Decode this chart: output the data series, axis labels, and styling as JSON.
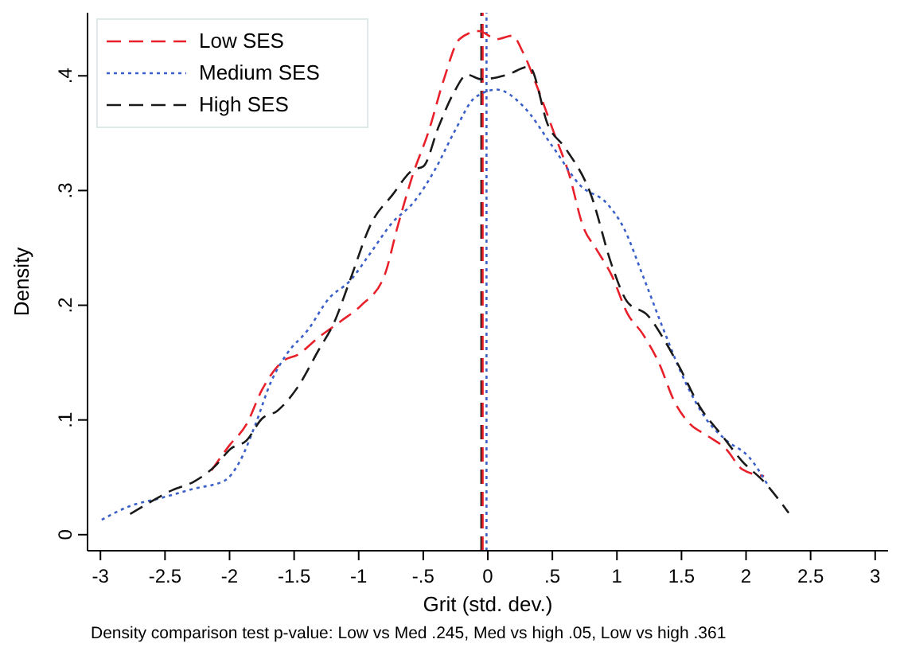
{
  "chart_data": {
    "type": "line",
    "xlabel": "Grit (std. dev.)",
    "ylabel": "Density",
    "annotations": [
      "Density comparison test p-value: Low vs Med .245, Med vs high .05, Low vs high .361"
    ],
    "xlim": [
      -3.1,
      3.1
    ],
    "ylim": [
      -0.014,
      0.455
    ],
    "xticks": [
      -3,
      -2.5,
      -2,
      -1.5,
      -1,
      {
        "value": -0.5,
        "label": "-.5"
      },
      0,
      {
        "value": 0.5,
        "label": ".5"
      },
      1,
      1.5,
      2,
      2.5,
      3
    ],
    "yticks": [
      0,
      {
        "value": 0.1,
        "label": ".1"
      },
      {
        "value": 0.2,
        "label": ".2"
      },
      {
        "value": 0.3,
        "label": ".3"
      },
      {
        "value": 0.4,
        "label": ".4"
      }
    ],
    "grid": false,
    "legend": "top left",
    "marker": "none",
    "series": [
      {
        "name": "Low SES",
        "color": "#e8202a",
        "line_style": "dashed",
        "x": [
          -2.14,
          -2.0,
          -1.87,
          -1.75,
          -1.59,
          -1.47,
          -1.31,
          -1.14,
          -0.98,
          -0.8,
          -0.7,
          -0.58,
          -0.46,
          -0.34,
          -0.22,
          -0.07,
          0.07,
          0.19,
          0.27,
          0.39,
          0.51,
          0.63,
          0.74,
          0.84,
          0.96,
          1.08,
          1.2,
          1.32,
          1.45,
          1.57,
          1.69,
          1.85,
          1.97,
          2.14
        ],
        "values": [
          0.056,
          0.078,
          0.096,
          0.126,
          0.151,
          0.157,
          0.172,
          0.186,
          0.2,
          0.226,
          0.268,
          0.314,
          0.351,
          0.397,
          0.432,
          0.439,
          0.432,
          0.435,
          0.421,
          0.388,
          0.351,
          0.314,
          0.268,
          0.249,
          0.226,
          0.193,
          0.175,
          0.151,
          0.115,
          0.096,
          0.087,
          0.074,
          0.057,
          0.051
        ]
      },
      {
        "name": "Medium SES",
        "color": "#3a5fc8",
        "line_style": "dotted",
        "x": [
          -2.99,
          -2.77,
          -2.53,
          -2.28,
          -2.04,
          -1.92,
          -1.8,
          -1.68,
          -1.56,
          -1.39,
          -1.23,
          -1.07,
          -0.9,
          -0.74,
          -0.58,
          -0.41,
          -0.26,
          -0.1,
          0.07,
          0.27,
          0.51,
          0.72,
          0.92,
          1.05,
          1.2,
          1.36,
          1.53,
          1.69,
          1.85,
          2.02,
          2.17
        ],
        "values": [
          0.013,
          0.025,
          0.032,
          0.04,
          0.047,
          0.064,
          0.096,
          0.133,
          0.157,
          0.179,
          0.206,
          0.221,
          0.247,
          0.272,
          0.289,
          0.318,
          0.351,
          0.381,
          0.388,
          0.374,
          0.337,
          0.304,
          0.289,
          0.268,
          0.226,
          0.179,
          0.133,
          0.101,
          0.082,
          0.068,
          0.043
        ]
      },
      {
        "name": "High SES",
        "color": "#1a1a1a",
        "line_style": "dashed",
        "x": [
          -2.77,
          -2.65,
          -2.44,
          -2.28,
          -2.11,
          -1.99,
          -1.87,
          -1.75,
          -1.63,
          -1.47,
          -1.31,
          -1.19,
          -1.07,
          -0.9,
          -0.74,
          -0.58,
          -0.5,
          -0.38,
          -0.26,
          -0.16,
          -0.05,
          0.15,
          0.32,
          0.47,
          0.6,
          0.8,
          0.96,
          1.08,
          1.24,
          1.36,
          1.48,
          1.65,
          1.81,
          1.97,
          2.14,
          2.33
        ],
        "values": [
          0.018,
          0.026,
          0.039,
          0.046,
          0.06,
          0.075,
          0.082,
          0.101,
          0.108,
          0.129,
          0.161,
          0.185,
          0.221,
          0.272,
          0.296,
          0.318,
          0.321,
          0.356,
          0.386,
          0.401,
          0.397,
          0.401,
          0.408,
          0.356,
          0.337,
          0.296,
          0.235,
          0.203,
          0.191,
          0.171,
          0.147,
          0.11,
          0.087,
          0.064,
          0.046,
          0.019
        ]
      }
    ],
    "ref_lines": [
      {
        "axis": "x",
        "value": -0.05,
        "color": "#1a1a1a",
        "line_style": "dashed"
      },
      {
        "axis": "x",
        "value": -0.04,
        "color": "#e8202a",
        "line_style": "dashed"
      },
      {
        "axis": "x",
        "value": -0.01,
        "color": "#3a5fc8",
        "line_style": "dotted"
      }
    ]
  }
}
